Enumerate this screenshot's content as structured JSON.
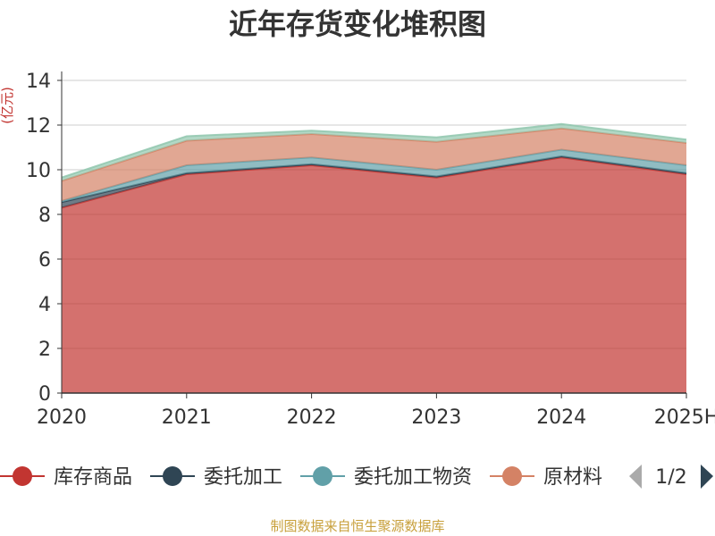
{
  "chart_data": {
    "type": "area",
    "stacked": true,
    "title": "近年存货变化堆积图",
    "ylabel": "(亿元)",
    "ylim": [
      0,
      14
    ],
    "yticks": [
      0,
      2,
      4,
      6,
      8,
      10,
      12,
      14
    ],
    "grid": true,
    "categories": [
      "2020",
      "2021",
      "2022",
      "2023",
      "2024",
      "2025H"
    ],
    "series": [
      {
        "name": "库存商品",
        "color": "#c23531",
        "values": [
          8.3,
          9.8,
          10.2,
          9.65,
          10.55,
          9.8
        ]
      },
      {
        "name": "委托加工",
        "color": "#2f4554",
        "values": [
          0.25,
          0.05,
          0.05,
          0.05,
          0.05,
          0.05
        ]
      },
      {
        "name": "委托加工物资",
        "color": "#61a0a8",
        "values": [
          0.05,
          0.35,
          0.3,
          0.3,
          0.3,
          0.35
        ]
      },
      {
        "name": "原材料",
        "color": "#d48265",
        "values": [
          0.9,
          1.1,
          1.05,
          1.25,
          0.95,
          1.0
        ]
      },
      {
        "name": "",
        "color": "#91c7ae",
        "values": [
          0.15,
          0.2,
          0.15,
          0.2,
          0.2,
          0.15
        ]
      }
    ],
    "legend": {
      "position": "bottom",
      "page": "1/2"
    },
    "source": "制图数据来自恒生聚源数据库"
  }
}
